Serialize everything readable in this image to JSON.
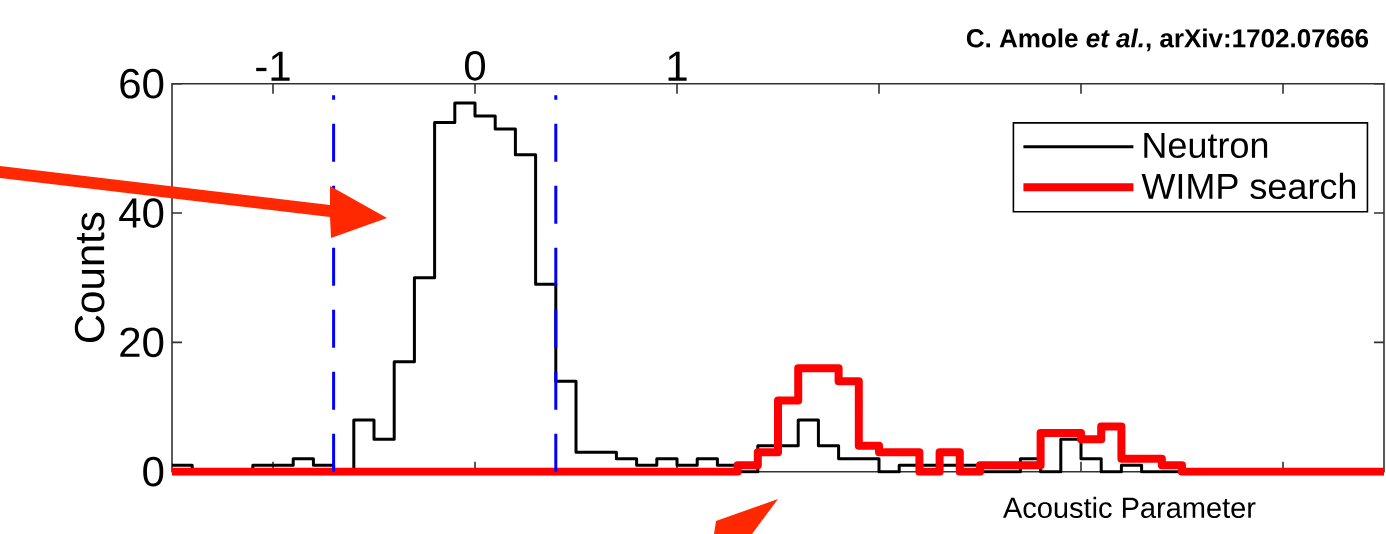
{
  "chart_data": {
    "type": "histogram",
    "annotations": [
      "C. Amole *et al.*, arXiv:1702.07666"
    ],
    "xlabel": "Acoustic Parameter",
    "ylabel": "Counts",
    "bins": [
      -1.5,
      -1.4,
      -1.3,
      -1.2,
      -1.1,
      -1.0,
      -0.9,
      -0.8,
      -0.7,
      -0.6,
      -0.5,
      -0.4,
      -0.3,
      -0.2,
      -0.1,
      0.0,
      0.1,
      0.2,
      0.3,
      0.4,
      0.5,
      0.6,
      0.7,
      0.8,
      0.9,
      1.0,
      1.1,
      1.2,
      1.3,
      1.4,
      1.5,
      1.6,
      1.7,
      1.8,
      1.9,
      2.0,
      2.1,
      2.2,
      2.3,
      2.4,
      2.5,
      2.6,
      2.7,
      2.8,
      2.9,
      3.0,
      3.1,
      3.2,
      3.3,
      3.4,
      3.5,
      3.6,
      3.7,
      3.8,
      3.9,
      4.0,
      4.1,
      4.2,
      4.3,
      4.4,
      4.5
    ],
    "series": [
      {
        "name": "Neutron",
        "color": "#000000",
        "values": [
          1,
          0,
          0,
          0,
          1,
          1,
          2,
          1,
          0,
          8,
          5,
          17,
          30,
          54,
          57,
          55,
          53,
          49,
          29,
          14,
          3,
          3,
          2,
          1,
          2,
          1,
          2,
          1,
          0,
          4,
          4,
          8,
          4,
          2,
          2,
          0,
          1,
          1,
          1,
          1,
          0,
          0,
          2,
          0,
          5,
          2,
          0,
          1,
          0,
          0,
          0,
          0,
          0,
          0,
          0,
          0,
          0,
          0,
          0,
          0
        ]
      },
      {
        "name": "WIMP search",
        "color": "#ff0000",
        "values": [
          0,
          0,
          0,
          0,
          0,
          0,
          0,
          0,
          0,
          0,
          0,
          0,
          0,
          0,
          0,
          0,
          0,
          0,
          0,
          0,
          0,
          0,
          0,
          0,
          0,
          0,
          0,
          0,
          1,
          3,
          11,
          16,
          16,
          14,
          4,
          3,
          3,
          0,
          3,
          0,
          1,
          1,
          1,
          6,
          6,
          5,
          7,
          2,
          2,
          1,
          0,
          0,
          0,
          0,
          0,
          0,
          0,
          0,
          0,
          0
        ]
      }
    ],
    "xlim": [
      -1.5,
      4.5
    ],
    "ylim": [
      0,
      60
    ],
    "xticks": [
      -1,
      0,
      1,
      {
        "value": 2,
        "label": null
      },
      {
        "value": 3,
        "label": null
      },
      {
        "value": 4,
        "label": null
      }
    ],
    "yticks": [
      0,
      20,
      40,
      60
    ],
    "ref_lines": [
      {
        "axis": "x",
        "value": -0.7,
        "color": "#0000ff",
        "line_style": "dashed"
      },
      {
        "axis": "x",
        "value": 0.4,
        "color": "#0000ff",
        "line_style": "dashed"
      }
    ],
    "legend": "top right",
    "grid": false,
    "marker": "none",
    "line_style": "solid"
  }
}
